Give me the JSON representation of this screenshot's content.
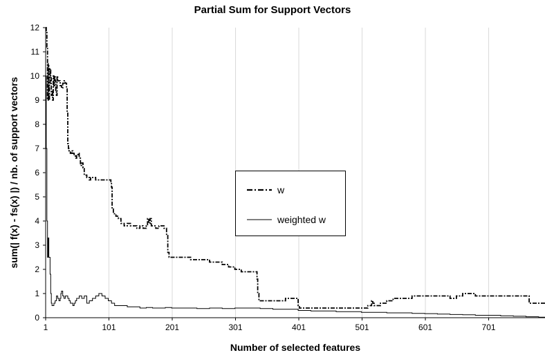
{
  "chart_data": {
    "type": "line",
    "title": "Partial Sum for Support Vectors",
    "xlabel": "Number of selected features",
    "ylabel": "sum(| f(x) - fs(x) |) / nb. of support vectors",
    "xlim": [
      1,
      790
    ],
    "ylim": [
      0,
      12
    ],
    "x_ticks": [
      "1",
      "101",
      "201",
      "301",
      "401",
      "501",
      "601",
      "701"
    ],
    "y_ticks": [
      "0",
      "1",
      "2",
      "3",
      "4",
      "5",
      "6",
      "7",
      "8",
      "9",
      "10",
      "11",
      "12"
    ],
    "legend_position": "center-right",
    "series": [
      {
        "name": "w",
        "style": "dash-dot",
        "x": [
          1,
          2,
          3,
          4,
          5,
          6,
          7,
          8,
          9,
          10,
          11,
          12,
          13,
          14,
          15,
          16,
          17,
          18,
          19,
          20,
          22,
          24,
          26,
          28,
          30,
          32,
          34,
          35,
          36,
          37,
          38,
          40,
          42,
          44,
          46,
          48,
          50,
          52,
          54,
          56,
          58,
          60,
          62,
          64,
          66,
          68,
          70,
          72,
          74,
          76,
          80,
          85,
          90,
          95,
          100,
          104,
          105,
          106,
          108,
          110,
          112,
          114,
          116,
          118,
          120,
          125,
          130,
          135,
          140,
          145,
          150,
          155,
          160,
          162,
          164,
          166,
          168,
          170,
          175,
          180,
          185,
          188,
          190,
          192,
          194,
          196,
          200,
          210,
          220,
          230,
          240,
          250,
          260,
          270,
          280,
          290,
          300,
          310,
          320,
          330,
          334,
          335,
          336,
          338,
          340,
          350,
          360,
          370,
          380,
          390,
          398,
          400,
          402,
          420,
          440,
          460,
          480,
          500,
          510,
          515,
          516,
          518,
          520,
          530,
          540,
          550,
          560,
          570,
          580,
          590,
          600,
          610,
          620,
          630,
          640,
          650,
          660,
          670,
          680,
          690,
          700,
          720,
          740,
          760,
          765,
          770,
          780,
          790
        ],
        "values": [
          12.0,
          11.8,
          11.2,
          9.0,
          10.5,
          9.0,
          9.7,
          10.3,
          10.0,
          9.2,
          9.4,
          9.0,
          10.0,
          9.6,
          10.0,
          9.8,
          9.4,
          9.2,
          10.0,
          9.8,
          9.8,
          9.6,
          9.5,
          9.7,
          9.8,
          9.7,
          9.5,
          8.5,
          7.2,
          7.0,
          6.9,
          6.8,
          6.9,
          6.8,
          6.7,
          6.6,
          6.7,
          6.8,
          6.6,
          6.3,
          6.4,
          6.2,
          5.9,
          5.9,
          5.8,
          5.8,
          5.7,
          5.8,
          5.8,
          5.8,
          5.7,
          5.7,
          5.7,
          5.7,
          5.7,
          5.6,
          5.4,
          4.5,
          4.3,
          4.3,
          4.2,
          4.2,
          4.1,
          4.1,
          3.9,
          3.8,
          3.9,
          3.8,
          3.8,
          3.7,
          3.8,
          3.7,
          3.8,
          4.1,
          3.9,
          4.1,
          3.8,
          3.8,
          3.7,
          3.8,
          3.8,
          3.7,
          3.7,
          3.4,
          2.7,
          2.5,
          2.5,
          2.5,
          2.5,
          2.4,
          2.4,
          2.4,
          2.3,
          2.3,
          2.2,
          2.1,
          2.0,
          1.9,
          1.9,
          1.9,
          1.9,
          1.6,
          1.0,
          0.7,
          0.7,
          0.7,
          0.7,
          0.7,
          0.8,
          0.8,
          0.8,
          0.5,
          0.4,
          0.4,
          0.4,
          0.4,
          0.4,
          0.4,
          0.5,
          0.5,
          0.7,
          0.6,
          0.5,
          0.6,
          0.7,
          0.8,
          0.8,
          0.8,
          0.9,
          0.9,
          0.9,
          0.9,
          0.9,
          0.9,
          0.8,
          0.9,
          1.0,
          1.0,
          0.9,
          0.9,
          0.9,
          0.9,
          0.9,
          0.9,
          0.6,
          0.6,
          0.6,
          0.6
        ]
      },
      {
        "name": "weighted w",
        "style": "solid",
        "x": [
          1,
          2,
          3,
          4,
          5,
          6,
          8,
          9,
          10,
          11,
          12,
          14,
          16,
          18,
          20,
          22,
          24,
          25,
          26,
          28,
          30,
          32,
          34,
          36,
          38,
          40,
          42,
          44,
          46,
          48,
          50,
          54,
          58,
          62,
          66,
          70,
          75,
          80,
          85,
          90,
          95,
          100,
          105,
          110,
          120,
          130,
          140,
          150,
          160,
          170,
          180,
          190,
          200,
          220,
          240,
          260,
          280,
          300,
          320,
          340,
          360,
          380,
          400,
          420,
          440,
          460,
          480,
          500,
          520,
          540,
          560,
          580,
          600,
          620,
          640,
          660,
          680,
          700,
          720,
          740,
          760,
          780,
          790
        ],
        "values": [
          10.0,
          7.0,
          4.0,
          2.5,
          3.3,
          2.5,
          1.8,
          1.0,
          0.6,
          0.5,
          0.5,
          0.6,
          0.7,
          0.9,
          0.8,
          0.7,
          0.8,
          1.0,
          1.1,
          0.9,
          0.8,
          0.9,
          0.9,
          0.8,
          0.7,
          0.6,
          0.6,
          0.5,
          0.6,
          0.7,
          0.8,
          0.9,
          0.8,
          0.9,
          0.6,
          0.7,
          0.8,
          0.9,
          1.0,
          0.9,
          0.8,
          0.7,
          0.6,
          0.5,
          0.5,
          0.45,
          0.45,
          0.4,
          0.42,
          0.4,
          0.4,
          0.42,
          0.4,
          0.4,
          0.38,
          0.4,
          0.38,
          0.4,
          0.4,
          0.38,
          0.35,
          0.35,
          0.3,
          0.28,
          0.28,
          0.25,
          0.25,
          0.22,
          0.22,
          0.2,
          0.2,
          0.18,
          0.17,
          0.15,
          0.13,
          0.12,
          0.1,
          0.1,
          0.08,
          0.06,
          0.04,
          0.02,
          0.0
        ]
      }
    ]
  }
}
